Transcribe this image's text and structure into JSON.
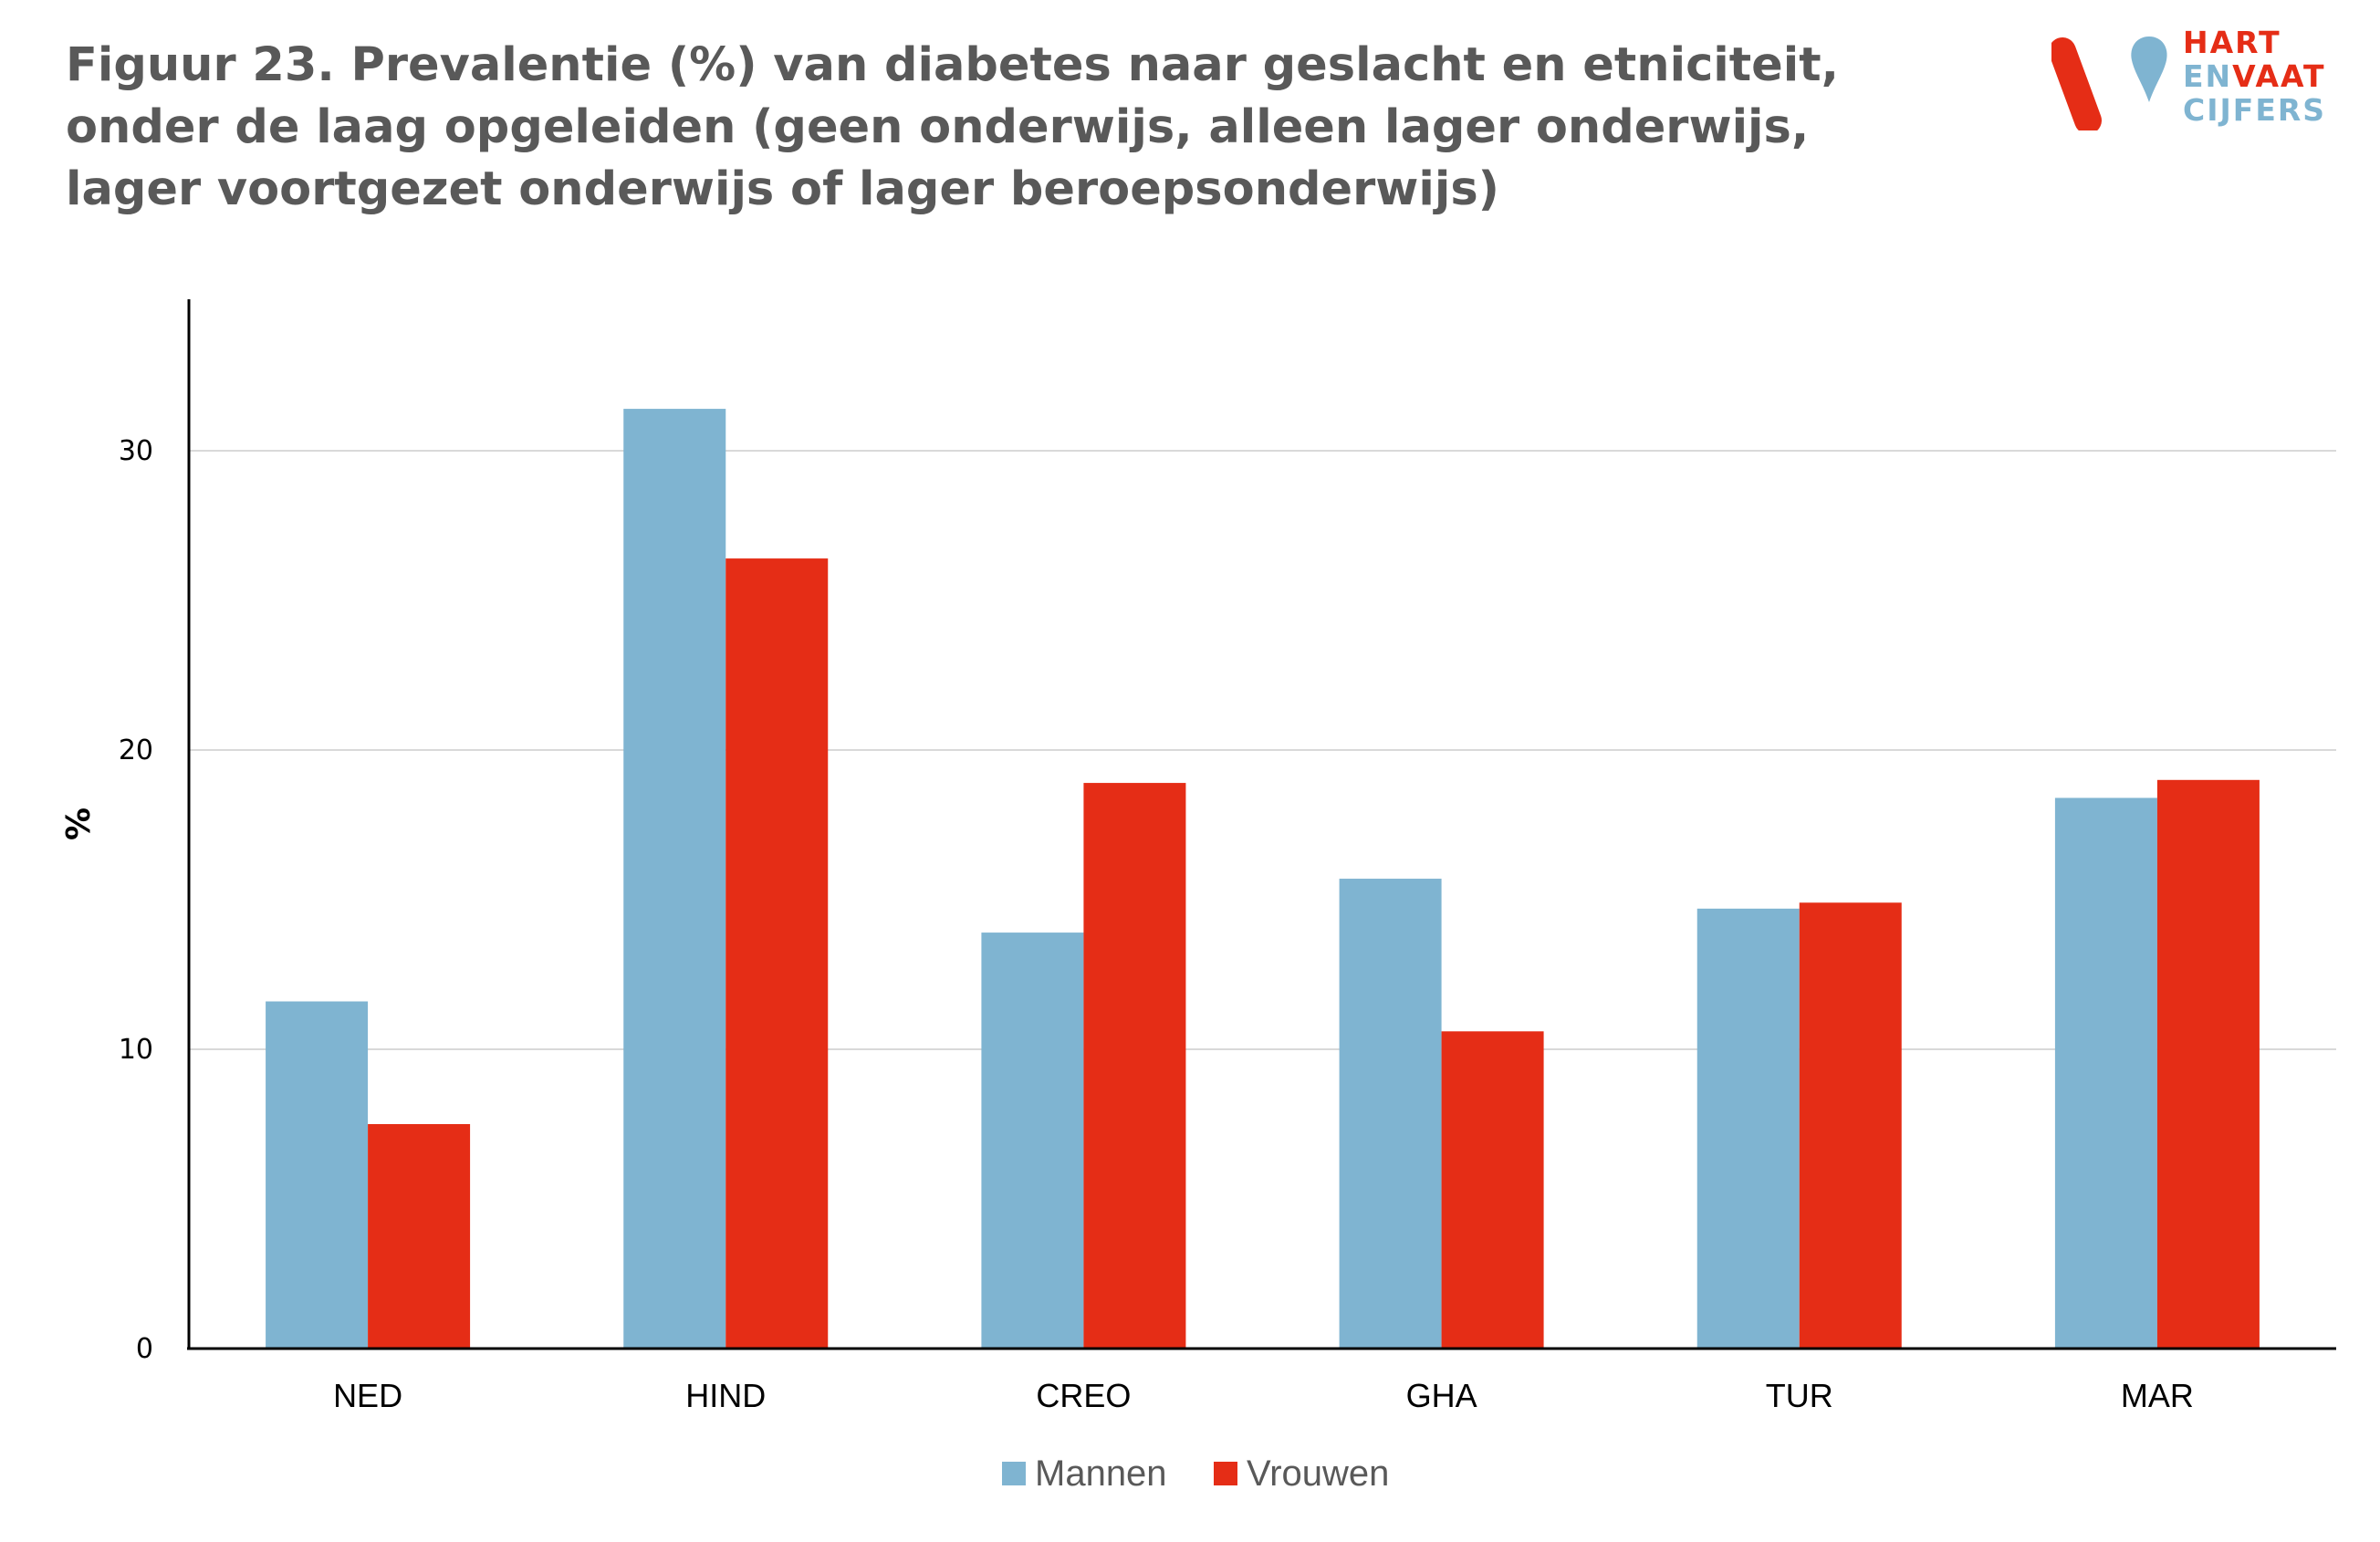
{
  "logo": {
    "line1": "HART",
    "line2a": "EN",
    "line2b": "VAAT",
    "line3": "CIJFERS",
    "colors": {
      "red": "#e52d16",
      "blue": "#7fb4d1"
    }
  },
  "chart_data": {
    "type": "bar",
    "title": "Figuur 23. Prevalentie (%) van diabetes naar geslacht en etniciteit, onder de laag opgeleiden  (geen onderwijs, alleen lager onderwijs, lager voortgezet onderwijs of lager beroepsonderwijs)",
    "ylabel": "%",
    "xlabel": "",
    "categories": [
      "NED",
      "HIND",
      "CREO",
      "GHA",
      "TUR",
      "MAR"
    ],
    "series": [
      {
        "name": "Mannen",
        "color": "#7fb4d1",
        "values": [
          11.6,
          31.4,
          13.9,
          15.7,
          14.7,
          18.4
        ]
      },
      {
        "name": "Vrouwen",
        "color": "#e52d16",
        "values": [
          7.5,
          26.4,
          18.9,
          10.6,
          14.9,
          19.0
        ]
      }
    ],
    "ylim": [
      0,
      35
    ],
    "yticks": [
      0,
      10,
      20,
      30
    ],
    "grid": true,
    "legend_position": "bottom"
  }
}
